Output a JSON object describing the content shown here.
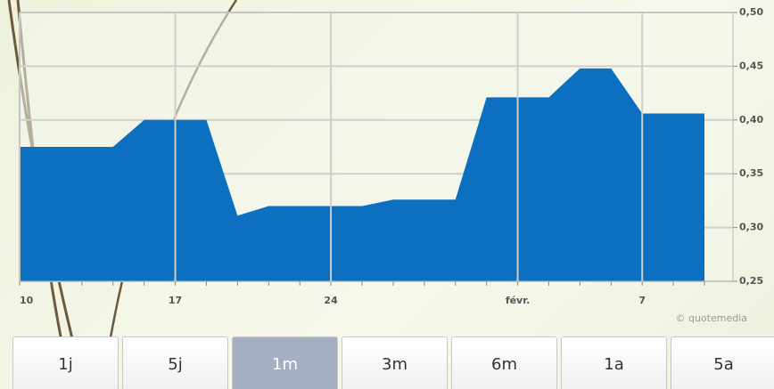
{
  "chart_data": {
    "type": "area",
    "categories": [
      "10",
      null,
      null,
      null,
      null,
      "17",
      null,
      null,
      null,
      null,
      "24",
      null,
      null,
      null,
      null,
      null,
      "févr.",
      null,
      null,
      null,
      "7",
      null,
      null
    ],
    "values": [
      0.375,
      0.375,
      0.375,
      0.375,
      0.4,
      0.4,
      0.4,
      0.311,
      0.32,
      0.32,
      0.32,
      0.32,
      0.326,
      0.326,
      0.326,
      0.421,
      0.421,
      0.421,
      0.448,
      0.448,
      0.406,
      0.406,
      0.406
    ],
    "color": "#0d6fbf",
    "ylim": [
      0.25,
      0.5
    ],
    "yticks": [
      {
        "value": 0.25,
        "label": "0,25"
      },
      {
        "value": 0.3,
        "label": "0,30"
      },
      {
        "value": 0.35,
        "label": "0,35"
      },
      {
        "value": 0.4,
        "label": "0,40"
      },
      {
        "value": 0.45,
        "label": "0,45"
      },
      {
        "value": 0.5,
        "label": "0,50"
      }
    ],
    "grid": true,
    "watermark": "© quotemedia"
  },
  "buttons": [
    {
      "label": "1j",
      "active": false
    },
    {
      "label": "5j",
      "active": false
    },
    {
      "label": "1m",
      "active": true
    },
    {
      "label": "3m",
      "active": false
    },
    {
      "label": "6m",
      "active": false
    },
    {
      "label": "1a",
      "active": false
    },
    {
      "label": "5a",
      "active": false
    }
  ]
}
